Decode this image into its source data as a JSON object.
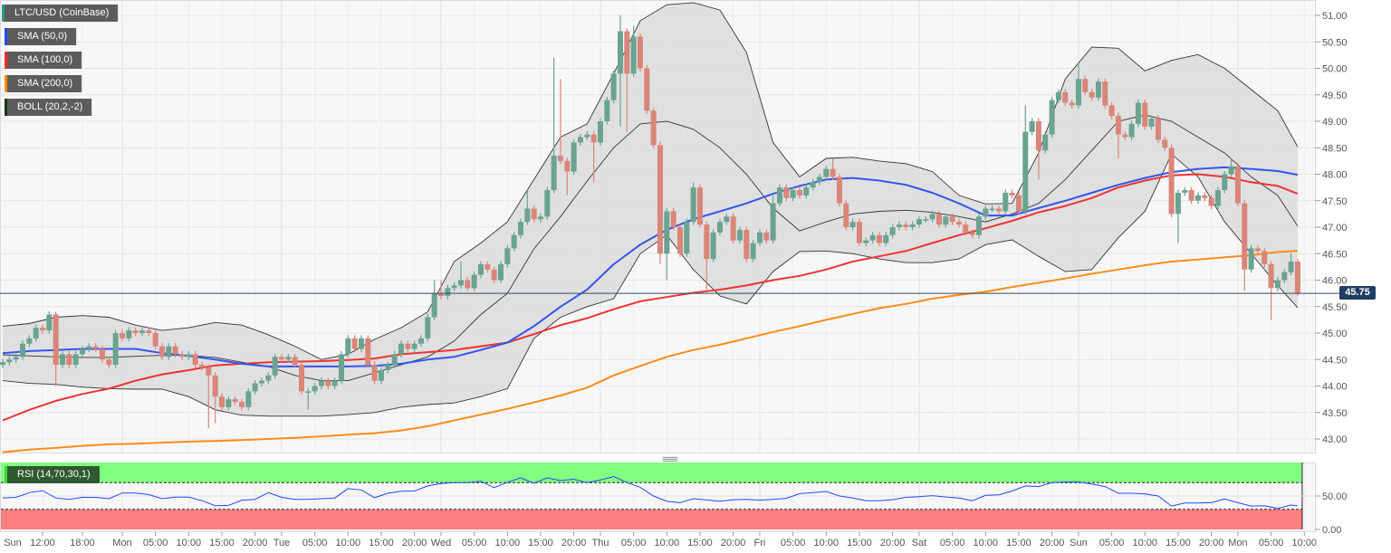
{
  "legend": [
    {
      "label": "LTC/USD (CoinBase)",
      "color": "#2a9d7a"
    },
    {
      "label": "SMA (50,0)",
      "color": "#2448ff"
    },
    {
      "label": "SMA (100,0)",
      "color": "#ff2a2a"
    },
    {
      "label": "SMA (200,0)",
      "color": "#ff8c00"
    },
    {
      "label": "BOLL (20,2,-2)",
      "color": "#143814"
    }
  ],
  "rsi_label": "RSI (14,70,30,1)",
  "last_price": "45.75",
  "colors": {
    "up": "#6aa390",
    "down": "#d9857a",
    "band_fill": "#dcdcdc",
    "boll_line": "#333333",
    "sma50": "#3355ee",
    "sma100": "#ee3333",
    "sma200": "#ff8c1a",
    "rsi_line": "#2448ff",
    "rsi_overbought": "#80ff80",
    "rsi_oversold": "#ff8080",
    "price_line": "#34495e"
  },
  "chart_data": {
    "type": "candlestick",
    "symbol": "LTC/USD (CoinBase)",
    "interval": "1h",
    "first_candle": "Sun 06:00",
    "ylim": [
      42.75,
      51.3
    ],
    "yticks": [
      "51.00",
      "50.50",
      "50.00",
      "49.50",
      "49.00",
      "48.50",
      "48.00",
      "47.50",
      "47.00",
      "46.50",
      "46.00",
      "45.50",
      "45.00",
      "44.50",
      "44.00",
      "43.50",
      "43.00"
    ],
    "xticks": [
      "Sun",
      "12:00",
      "18:00",
      "Mon",
      "05:00",
      "10:00",
      "15:00",
      "20:00",
      "Tue",
      "05:00",
      "10:00",
      "15:00",
      "20:00",
      "Wed",
      "05:00",
      "10:00",
      "15:00",
      "20:00",
      "Thu",
      "05:00",
      "10:00",
      "15:00",
      "20:00",
      "Fri",
      "05:00",
      "10:00",
      "15:00",
      "20:00",
      "Sat",
      "05:00",
      "10:00",
      "15:00",
      "20:00",
      "Sun",
      "05:00",
      "10:00",
      "15:00",
      "20:00",
      "Mon",
      "05:00",
      "10:00"
    ],
    "open_first": 44.4,
    "close": [
      44.45,
      44.5,
      44.55,
      44.8,
      44.9,
      45.1,
      45.05,
      45.35,
      44.4,
      44.6,
      44.4,
      44.6,
      44.7,
      44.75,
      44.7,
      44.5,
      44.4,
      45.0,
      44.9,
      45.05,
      45.0,
      45.05,
      45.0,
      44.75,
      44.55,
      44.75,
      44.6,
      44.55,
      44.6,
      44.4,
      44.35,
      44.2,
      43.8,
      43.6,
      43.75,
      43.7,
      43.6,
      43.9,
      44.05,
      44.1,
      44.2,
      44.55,
      44.5,
      44.55,
      44.4,
      43.9,
      43.9,
      44.0,
      44.1,
      44.0,
      44.1,
      44.6,
      44.9,
      44.7,
      44.9,
      44.4,
      44.1,
      44.3,
      44.4,
      44.6,
      44.8,
      44.7,
      44.8,
      44.9,
      45.3,
      45.75,
      45.7,
      45.85,
      45.9,
      46.0,
      45.85,
      46.1,
      46.3,
      46.2,
      46.0,
      46.3,
      46.6,
      46.85,
      47.1,
      47.35,
      47.15,
      47.2,
      47.7,
      48.35,
      48.25,
      48.05,
      48.6,
      48.7,
      48.75,
      48.6,
      49.0,
      49.4,
      49.9,
      50.7,
      49.9,
      50.6,
      50.0,
      49.2,
      48.55,
      46.5,
      47.3,
      47.0,
      46.5,
      47.1,
      47.75,
      47.05,
      46.4,
      46.9,
      47.1,
      47.2,
      46.75,
      46.95,
      46.4,
      46.7,
      46.9,
      46.75,
      47.45,
      47.75,
      47.55,
      47.7,
      47.6,
      47.75,
      47.85,
      47.95,
      48.1,
      47.95,
      47.45,
      47.0,
      47.1,
      46.7,
      46.75,
      46.85,
      46.7,
      46.85,
      47.0,
      47.05,
      47.0,
      47.05,
      47.15,
      47.15,
      47.25,
      47.05,
      47.2,
      47.1,
      47.05,
      46.9,
      46.85,
      47.2,
      47.35,
      47.35,
      47.3,
      47.65,
      47.6,
      47.3,
      48.8,
      49.0,
      48.45,
      48.75,
      49.4,
      49.55,
      49.35,
      49.3,
      49.8,
      49.55,
      49.45,
      49.75,
      49.3,
      49.1,
      48.75,
      48.7,
      48.95,
      49.35,
      48.9,
      49.05,
      48.65,
      48.5,
      47.25,
      47.65,
      47.7,
      47.5,
      47.6,
      47.55,
      47.4,
      47.7,
      48.0,
      48.15,
      47.45,
      46.2,
      46.6,
      46.55,
      46.3,
      45.85,
      46.0,
      46.15,
      46.35,
      45.75
    ],
    "wicks": [
      [
        8,
        45.4,
        44.0
      ],
      [
        31,
        null,
        43.2
      ],
      [
        32,
        null,
        43.3
      ],
      [
        46,
        null,
        43.55
      ],
      [
        65,
        46.0,
        null
      ],
      [
        66,
        46.0,
        null
      ],
      [
        69,
        46.35,
        null
      ],
      [
        79,
        47.7,
        null
      ],
      [
        83,
        50.2,
        null
      ],
      [
        84,
        49.8,
        null
      ],
      [
        85,
        null,
        47.6
      ],
      [
        89,
        null,
        47.85
      ],
      [
        93,
        51.0,
        48.9
      ],
      [
        94,
        null,
        48.8
      ],
      [
        95,
        50.8,
        null
      ],
      [
        99,
        null,
        46.3
      ],
      [
        100,
        null,
        46.0
      ],
      [
        104,
        47.85,
        null
      ],
      [
        106,
        null,
        45.8
      ],
      [
        116,
        47.6,
        null
      ],
      [
        125,
        48.3,
        null
      ],
      [
        154,
        49.3,
        null
      ],
      [
        156,
        null,
        47.9
      ],
      [
        162,
        50.1,
        null
      ],
      [
        168,
        null,
        48.3
      ],
      [
        177,
        null,
        46.7
      ],
      [
        185,
        48.3,
        null
      ],
      [
        187,
        null,
        45.8
      ],
      [
        191,
        null,
        45.25
      ],
      [
        194,
        46.5,
        null
      ],
      [
        195,
        46.4,
        45.7
      ]
    ],
    "overlay_sample_step": 4,
    "overlays": {
      "sma50": [
        44.62,
        44.66,
        44.68,
        44.7,
        44.7,
        44.7,
        44.62,
        44.57,
        44.5,
        44.42,
        44.37,
        44.37,
        44.37,
        44.37,
        44.38,
        44.42,
        44.5,
        44.55,
        44.68,
        44.82,
        45.13,
        45.5,
        45.82,
        46.3,
        46.67,
        46.95,
        47.15,
        47.3,
        47.45,
        47.63,
        47.78,
        47.9,
        47.93,
        47.88,
        47.8,
        47.65,
        47.45,
        47.22,
        47.22,
        47.36,
        47.5,
        47.65,
        47.8,
        47.93,
        48.04,
        48.1,
        48.13,
        48.1,
        48.06,
        47.99
      ],
      "sma100": [
        43.35,
        43.55,
        43.72,
        43.85,
        43.95,
        44.1,
        44.22,
        44.3,
        44.39,
        44.42,
        44.45,
        44.46,
        44.47,
        44.49,
        44.52,
        44.6,
        44.64,
        44.68,
        44.75,
        44.82,
        44.98,
        45.15,
        45.28,
        45.45,
        45.6,
        45.68,
        45.76,
        45.82,
        45.9,
        46.0,
        46.08,
        46.2,
        46.35,
        46.45,
        46.55,
        46.7,
        46.85,
        46.98,
        47.12,
        47.28,
        47.4,
        47.55,
        47.75,
        47.88,
        47.98,
        48.0,
        47.95,
        47.85,
        47.78,
        47.63
      ],
      "sma200": [
        42.75,
        42.8,
        42.83,
        42.87,
        42.9,
        42.91,
        42.93,
        42.95,
        42.96,
        42.98,
        43.0,
        43.02,
        43.05,
        43.08,
        43.11,
        43.16,
        43.24,
        43.35,
        43.46,
        43.57,
        43.69,
        43.82,
        43.97,
        44.2,
        44.38,
        44.55,
        44.68,
        44.78,
        44.9,
        45.02,
        45.13,
        45.25,
        45.36,
        45.47,
        45.55,
        45.65,
        45.72,
        45.78,
        45.87,
        45.95,
        46.03,
        46.12,
        46.2,
        46.28,
        46.35,
        46.39,
        46.43,
        46.47,
        46.53,
        46.55
      ],
      "boll_upper": [
        45.13,
        45.18,
        45.3,
        45.33,
        45.3,
        45.15,
        45.05,
        45.1,
        45.2,
        45.15,
        44.97,
        44.75,
        44.5,
        44.6,
        44.88,
        45.1,
        45.4,
        46.35,
        46.7,
        47.1,
        47.9,
        48.7,
        48.95,
        49.9,
        50.9,
        51.2,
        51.24,
        51.1,
        50.3,
        48.6,
        47.95,
        48.3,
        48.32,
        48.25,
        48.2,
        48.05,
        47.6,
        47.44,
        47.45,
        48.4,
        49.8,
        50.4,
        50.38,
        49.95,
        50.15,
        50.26,
        50.0,
        49.6,
        49.2,
        48.52
      ],
      "boll_mid": [
        44.59,
        44.57,
        44.55,
        44.54,
        44.54,
        44.56,
        44.58,
        44.58,
        44.54,
        44.45,
        44.37,
        44.2,
        44.1,
        44.1,
        44.25,
        44.4,
        44.55,
        44.85,
        45.35,
        45.75,
        46.59,
        47.2,
        47.87,
        48.5,
        48.95,
        49.0,
        48.85,
        48.5,
        48.0,
        47.36,
        46.93,
        47.1,
        47.25,
        47.3,
        47.32,
        47.28,
        47.2,
        47.1,
        47.25,
        47.45,
        47.9,
        48.45,
        49.0,
        49.12,
        49.0,
        48.7,
        48.4,
        47.95,
        47.6,
        47.02
      ],
      "boll_lower": [
        44.1,
        44.05,
        44.03,
        43.98,
        43.95,
        43.94,
        43.94,
        43.8,
        43.55,
        43.45,
        43.43,
        43.43,
        43.43,
        43.46,
        43.5,
        43.6,
        43.65,
        43.68,
        43.8,
        43.95,
        44.9,
        45.3,
        45.5,
        45.65,
        46.5,
        46.85,
        46.2,
        45.7,
        45.55,
        46.16,
        46.54,
        46.55,
        46.5,
        46.4,
        46.33,
        46.33,
        46.4,
        46.67,
        46.76,
        46.45,
        46.16,
        46.2,
        46.8,
        47.3,
        48.38,
        47.95,
        47.1,
        46.5,
        45.9,
        45.48
      ]
    },
    "rsi": {
      "period": 14,
      "levels": [
        70,
        30
      ],
      "ylim": [
        0,
        100
      ],
      "yticks": [
        "50.00",
        "0.00"
      ],
      "sample_step": 2,
      "values": [
        47,
        48,
        55,
        58,
        47,
        45,
        48,
        48,
        46,
        54.5,
        54.5,
        52,
        46,
        48.4,
        48.3,
        43,
        35.5,
        36,
        43.5,
        45,
        55,
        48,
        45,
        45,
        46,
        47,
        61,
        59,
        47.5,
        54,
        57,
        57.5,
        65,
        68.7,
        70,
        70,
        72,
        62.5,
        70.5,
        77,
        69,
        77,
        73,
        75,
        70,
        74,
        79,
        70,
        63,
        50,
        42,
        40,
        46,
        44,
        42,
        44.5,
        45,
        43.8,
        45,
        46.5,
        53.5,
        55,
        56.8,
        50,
        47,
        43,
        43,
        44.5,
        48,
        49,
        50.6,
        48.5,
        47,
        42.8,
        51,
        51.8,
        57.5,
        65,
        64,
        70,
        71,
        71,
        67.8,
        64,
        54,
        54,
        53,
        50,
        35,
        39.5,
        39.5,
        40,
        45.5,
        40,
        35,
        35.4,
        31.5,
        36.5,
        35.5
      ]
    }
  }
}
